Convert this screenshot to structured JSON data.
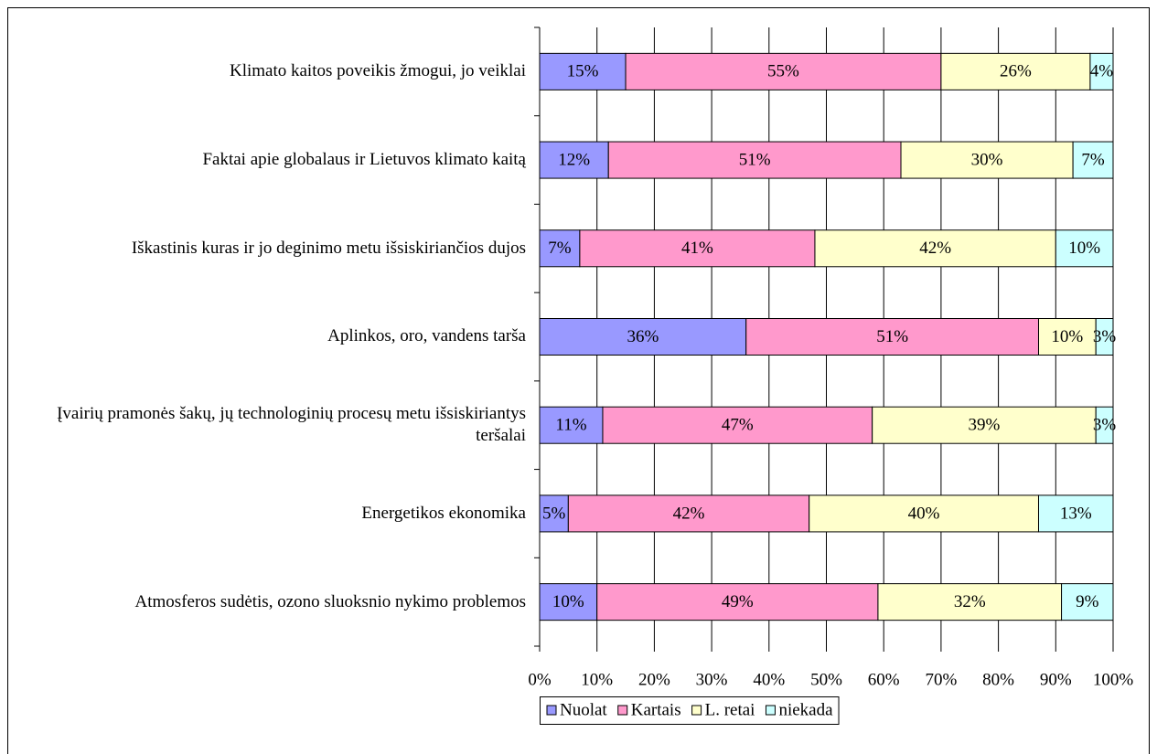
{
  "chart_data": {
    "type": "stacked-barh",
    "categories": [
      "Klimato kaitos poveikis žmogui, jo veiklai",
      "Faktai apie globalaus ir Lietuvos klimato kaitą",
      "Iškastinis kuras ir jo deginimo metu išsiskiriančios dujos",
      "Aplinkos, oro, vandens tarša",
      "Įvairių pramonės šakų, jų technologinių procesų metu išsiskiriantys teršalai",
      "Energetikos ekonomika",
      "Atmosferos sudėtis, ozono sluoksnio nykimo problemos"
    ],
    "series": [
      {
        "name": "Nuolat",
        "color": "#9999ff",
        "values": [
          15,
          12,
          7,
          36,
          11,
          5,
          10
        ],
        "value_labels": [
          "15%",
          "12%",
          "7%",
          "36%",
          "11%",
          "5%",
          "10%"
        ]
      },
      {
        "name": "Kartais",
        "color": "#ff99cc",
        "values": [
          55,
          51,
          41,
          51,
          47,
          42,
          49
        ],
        "value_labels": [
          "55%",
          "51%",
          "41%",
          "51%",
          "47%",
          "42%",
          "49%"
        ]
      },
      {
        "name": "L. retai",
        "color": "#ffffcc",
        "values": [
          26,
          30,
          42,
          10,
          39,
          40,
          32
        ],
        "value_labels": [
          "26%",
          "30%",
          "42%",
          "10%",
          "39%",
          "40%",
          "32%"
        ]
      },
      {
        "name": "niekada",
        "color": "#ccffff",
        "values": [
          4,
          7,
          10,
          3,
          3,
          13,
          9
        ],
        "value_labels": [
          "4%",
          "7%",
          "10%",
          "3%",
          "3%",
          "13%",
          "9%"
        ]
      }
    ],
    "xlim": [
      0,
      100
    ],
    "xticks": [
      {
        "value": 0,
        "label": "0%"
      },
      {
        "value": 10,
        "label": "10%"
      },
      {
        "value": 20,
        "label": "20%"
      },
      {
        "value": 30,
        "label": "30%"
      },
      {
        "value": 40,
        "label": "40%"
      },
      {
        "value": 50,
        "label": "50%"
      },
      {
        "value": 60,
        "label": "60%"
      },
      {
        "value": 70,
        "label": "70%"
      },
      {
        "value": 80,
        "label": "80%"
      },
      {
        "value": 90,
        "label": "90%"
      },
      {
        "value": 100,
        "label": "100%"
      }
    ],
    "grid": true,
    "legend": "bottom"
  }
}
